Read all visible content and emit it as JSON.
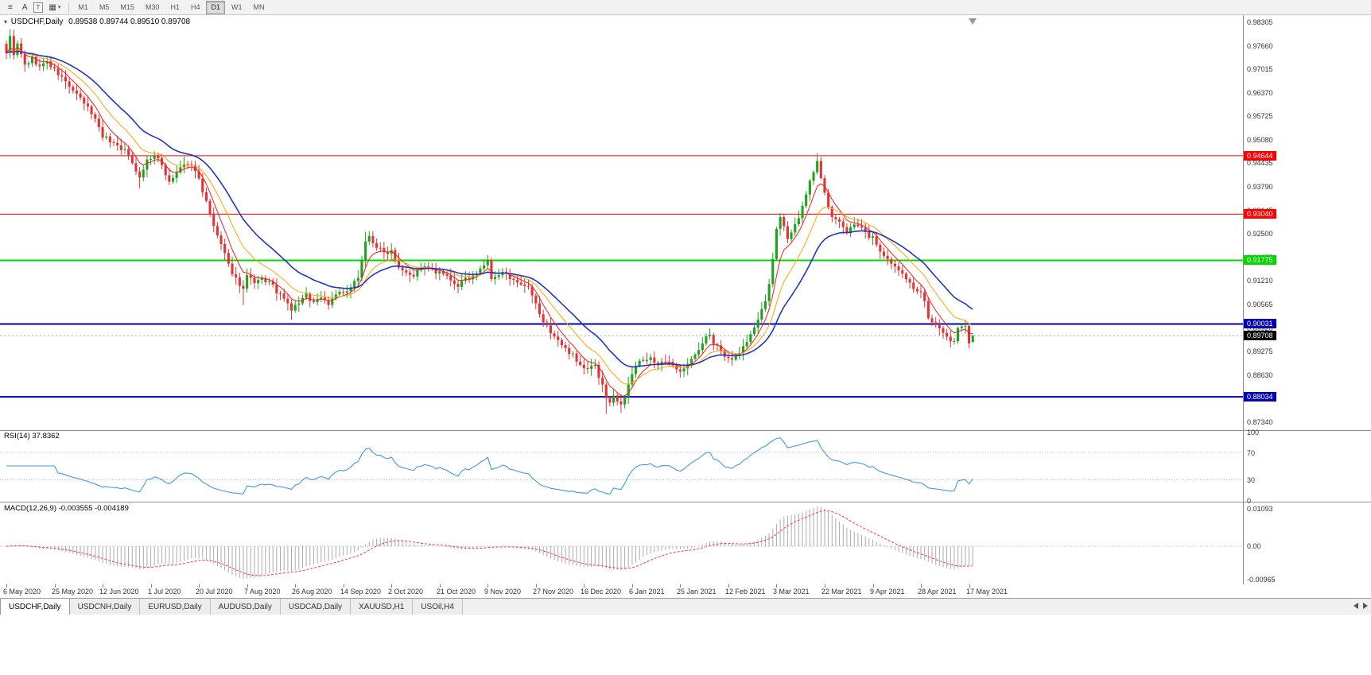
{
  "toolbar": {
    "tools": [
      {
        "name": "symbols-list-icon",
        "glyph": "≡"
      },
      {
        "name": "cursor-tool-button",
        "glyph": "A"
      },
      {
        "name": "text-tool-button",
        "glyph": "T",
        "boxed": true
      },
      {
        "name": "objects-dropdown",
        "glyph": "▦",
        "caret": true
      }
    ],
    "caret_glyph": "▾",
    "timeframes": [
      "M1",
      "M5",
      "M15",
      "M30",
      "H1",
      "H4",
      "D1",
      "W1",
      "MN"
    ],
    "active_timeframe": "D1"
  },
  "chart": {
    "one_click_glyph": "▾",
    "symbol_title": "USDCHF,Daily",
    "ohlc_text": "0.89538 0.89744 0.89510 0.89708",
    "price_scale_labels": [
      "0.98305",
      "0.97660",
      "0.97015",
      "0.96370",
      "0.95725",
      "0.95080",
      "0.94435",
      "0.93790",
      "0.93145",
      "0.92500",
      "0.91855",
      "0.91210",
      "0.90565",
      "0.89920",
      "0.89275",
      "0.88630",
      "0.87985",
      "0.87340"
    ],
    "hlines": [
      {
        "value": 0.94644,
        "label": "0.94644",
        "color": "#FF0000",
        "width": 1
      },
      {
        "value": 0.9304,
        "label": "0.93040",
        "color": "#FF0000",
        "width": 1
      },
      {
        "value": 0.91775,
        "label": "0.91775",
        "color": "#00D800",
        "width": 2
      },
      {
        "value": 0.90031,
        "label": "0.90031",
        "color": "#0000B4",
        "width": 2
      },
      {
        "value": 0.88034,
        "label": "0.88034",
        "color": "#0000B4",
        "width": 2
      }
    ],
    "current_price": {
      "value": 0.89708,
      "label": "0.89708",
      "badge_bg": "#000000"
    }
  },
  "indicators": {
    "rsi": {
      "label": "RSI(14) 37.8362",
      "period": 14,
      "value": 37.8362,
      "scale_labels": [
        "100",
        "70",
        "30",
        "0"
      ],
      "levels": [
        70,
        30
      ],
      "color": "#3E9BE0"
    },
    "macd": {
      "label": "MACD(12,26,9) -0.003555 -0.004189",
      "fast": 12,
      "slow": 26,
      "signal_period": 9,
      "macd_value": -0.003555,
      "signal_value": -0.004189,
      "scale_labels": [
        "0.01093",
        "0.00",
        "-0.00965"
      ],
      "histogram_color": "#ABABAB",
      "signal_color": "#FF3A3A"
    }
  },
  "chart_data": {
    "type": "candlestick",
    "symbol": "USDCHF",
    "period": "Daily",
    "candle_count": 262,
    "label_step": 13,
    "x_axis_labels": [
      "6 May 2020",
      "25 May 2020",
      "12 Jun 2020",
      "1 Jul 2020",
      "20 Jul 2020",
      "7 Aug 2020",
      "26 Aug 2020",
      "14 Sep 2020",
      "2 Oct 2020",
      "21 Oct 2020",
      "9 Nov 2020",
      "27 Nov 2020",
      "16 Dec 2020",
      "6 Jan 2021",
      "25 Jan 2021",
      "12 Feb 2021",
      "3 Mar 2021",
      "22 Mar 2021",
      "9 Apr 2021",
      "28 Apr 2021",
      "17 May 2021"
    ],
    "price_range": {
      "top": 0.985,
      "bottom": 0.8712
    },
    "horizontal_levels": [
      0.94644,
      0.9304,
      0.91775,
      0.90031,
      0.88034
    ],
    "last_candle_ohlc": [
      0.89538,
      0.89744,
      0.8951,
      0.89708
    ],
    "colors": {
      "up": "#1FA31F",
      "down": "#E23434",
      "background": "#FFFFFF"
    },
    "moving_averages": [
      {
        "period": 6,
        "type": "ema",
        "color": "#FF1A1A",
        "width": 1
      },
      {
        "period": 13,
        "type": "ema",
        "color": "#FFA500",
        "width": 1
      },
      {
        "period": 24,
        "type": "ema",
        "color": "#2036C0",
        "width": 1.6
      }
    ],
    "close_anchors": [
      [
        0,
        0.975
      ],
      [
        1,
        0.9788
      ],
      [
        2,
        0.9745
      ],
      [
        3,
        0.9768
      ],
      [
        5,
        0.9712
      ],
      [
        7,
        0.973
      ],
      [
        9,
        0.9708
      ],
      [
        11,
        0.9722
      ],
      [
        13,
        0.9698
      ],
      [
        15,
        0.9678
      ],
      [
        17,
        0.9655
      ],
      [
        19,
        0.963
      ],
      [
        21,
        0.9608
      ],
      [
        23,
        0.9582
      ],
      [
        25,
        0.9545
      ],
      [
        26,
        0.952
      ],
      [
        28,
        0.9505
      ],
      [
        30,
        0.9493
      ],
      [
        32,
        0.9478
      ],
      [
        34,
        0.9448
      ],
      [
        36,
        0.9405
      ],
      [
        38,
        0.9452
      ],
      [
        40,
        0.9465
      ],
      [
        42,
        0.9438
      ],
      [
        44,
        0.9393
      ],
      [
        46,
        0.9418
      ],
      [
        48,
        0.944
      ],
      [
        50,
        0.9438
      ],
      [
        52,
        0.9402
      ],
      [
        54,
        0.9335
      ],
      [
        56,
        0.927
      ],
      [
        58,
        0.922
      ],
      [
        60,
        0.9163
      ],
      [
        62,
        0.9128
      ],
      [
        64,
        0.9098
      ],
      [
        65,
        0.9135
      ],
      [
        67,
        0.9112
      ],
      [
        69,
        0.9125
      ],
      [
        71,
        0.9118
      ],
      [
        73,
        0.9092
      ],
      [
        75,
        0.907
      ],
      [
        77,
        0.9042
      ],
      [
        79,
        0.9062
      ],
      [
        81,
        0.9082
      ],
      [
        83,
        0.9062
      ],
      [
        85,
        0.9078
      ],
      [
        87,
        0.9058
      ],
      [
        89,
        0.9088
      ],
      [
        91,
        0.9086
      ],
      [
        93,
        0.9098
      ],
      [
        95,
        0.9135
      ],
      [
        97,
        0.9228
      ],
      [
        98,
        0.9242
      ],
      [
        100,
        0.9215
      ],
      [
        102,
        0.9198
      ],
      [
        104,
        0.9206
      ],
      [
        106,
        0.9162
      ],
      [
        108,
        0.9148
      ],
      [
        110,
        0.9136
      ],
      [
        112,
        0.9158
      ],
      [
        114,
        0.9155
      ],
      [
        116,
        0.9143
      ],
      [
        118,
        0.914
      ],
      [
        120,
        0.9118
      ],
      [
        122,
        0.9108
      ],
      [
        124,
        0.9124
      ],
      [
        126,
        0.9138
      ],
      [
        128,
        0.915
      ],
      [
        129,
        0.9165
      ],
      [
        130,
        0.918
      ],
      [
        131,
        0.9122
      ],
      [
        133,
        0.9136
      ],
      [
        135,
        0.9148
      ],
      [
        137,
        0.9118
      ],
      [
        139,
        0.9106
      ],
      [
        141,
        0.91
      ],
      [
        143,
        0.9055
      ],
      [
        145,
        0.9008
      ],
      [
        147,
        0.8982
      ],
      [
        149,
        0.8958
      ],
      [
        151,
        0.8932
      ],
      [
        153,
        0.8922
      ],
      [
        155,
        0.8888
      ],
      [
        157,
        0.8878
      ],
      [
        159,
        0.8895
      ],
      [
        160,
        0.8858
      ],
      [
        161,
        0.8835
      ],
      [
        162,
        0.8802
      ],
      [
        163,
        0.8782
      ],
      [
        164,
        0.8812
      ],
      [
        165,
        0.879
      ],
      [
        166,
        0.878
      ],
      [
        167,
        0.881
      ],
      [
        168,
        0.8842
      ],
      [
        169,
        0.887
      ],
      [
        170,
        0.8888
      ],
      [
        172,
        0.8905
      ],
      [
        174,
        0.8912
      ],
      [
        176,
        0.8888
      ],
      [
        178,
        0.89
      ],
      [
        180,
        0.8888
      ],
      [
        182,
        0.8878
      ],
      [
        184,
        0.8892
      ],
      [
        186,
        0.8918
      ],
      [
        188,
        0.8948
      ],
      [
        189,
        0.8965
      ],
      [
        190,
        0.8978
      ],
      [
        191,
        0.895
      ],
      [
        193,
        0.8926
      ],
      [
        195,
        0.8906
      ],
      [
        197,
        0.8916
      ],
      [
        199,
        0.894
      ],
      [
        201,
        0.8972
      ],
      [
        203,
        0.9015
      ],
      [
        205,
        0.9062
      ],
      [
        206,
        0.9115
      ],
      [
        207,
        0.9185
      ],
      [
        208,
        0.9258
      ],
      [
        209,
        0.9292
      ],
      [
        210,
        0.9265
      ],
      [
        211,
        0.9242
      ],
      [
        212,
        0.9258
      ],
      [
        213,
        0.9275
      ],
      [
        214,
        0.9298
      ],
      [
        215,
        0.9322
      ],
      [
        216,
        0.9355
      ],
      [
        217,
        0.9392
      ],
      [
        218,
        0.9425
      ],
      [
        219,
        0.9445
      ],
      [
        220,
        0.94
      ],
      [
        221,
        0.9358
      ],
      [
        222,
        0.9328
      ],
      [
        223,
        0.9302
      ],
      [
        224,
        0.9292
      ],
      [
        225,
        0.9282
      ],
      [
        226,
        0.9265
      ],
      [
        227,
        0.9255
      ],
      [
        228,
        0.9262
      ],
      [
        229,
        0.9278
      ],
      [
        230,
        0.927
      ],
      [
        231,
        0.9265
      ],
      [
        232,
        0.9252
      ],
      [
        233,
        0.9245
      ],
      [
        234,
        0.924
      ],
      [
        235,
        0.922
      ],
      [
        236,
        0.9202
      ],
      [
        237,
        0.9192
      ],
      [
        238,
        0.9178
      ],
      [
        239,
        0.9165
      ],
      [
        240,
        0.9158
      ],
      [
        241,
        0.9145
      ],
      [
        242,
        0.9138
      ],
      [
        243,
        0.913
      ],
      [
        244,
        0.9118
      ],
      [
        245,
        0.9105
      ],
      [
        246,
        0.9095
      ],
      [
        247,
        0.9088
      ],
      [
        248,
        0.9062
      ],
      [
        249,
        0.9025
      ],
      [
        250,
        0.9005
      ],
      [
        251,
        0.9002
      ],
      [
        252,
        0.899
      ],
      [
        253,
        0.8972
      ],
      [
        254,
        0.8962
      ],
      [
        255,
        0.895
      ],
      [
        256,
        0.8958
      ],
      [
        257,
        0.8988
      ],
      [
        258,
        0.8996
      ],
      [
        259,
        0.9
      ],
      [
        260,
        0.8956
      ],
      [
        261,
        0.8971
      ]
    ],
    "wick_extremes": {
      "highs": [
        [
          1,
          0.9802
        ],
        [
          97,
          0.9256
        ],
        [
          130,
          0.9192
        ],
        [
          219,
          0.9472
        ],
        [
          259,
          0.9006
        ]
      ],
      "lows": [
        [
          36,
          0.9375
        ],
        [
          64,
          0.9055
        ],
        [
          77,
          0.9015
        ],
        [
          162,
          0.8757
        ],
        [
          166,
          0.876
        ]
      ]
    }
  },
  "tabbar": {
    "tabs": [
      {
        "label": "USDCHF,Daily",
        "active": true
      },
      {
        "label": "USDCNH,Daily",
        "active": false
      },
      {
        "label": "EURUSD,Daily",
        "active": false
      },
      {
        "label": "AUDUSD,Daily",
        "active": false
      },
      {
        "label": "USDCAD,Daily",
        "active": false
      },
      {
        "label": "XAUUSD,H1",
        "active": false
      },
      {
        "label": "USOil,H4",
        "active": false
      }
    ]
  }
}
